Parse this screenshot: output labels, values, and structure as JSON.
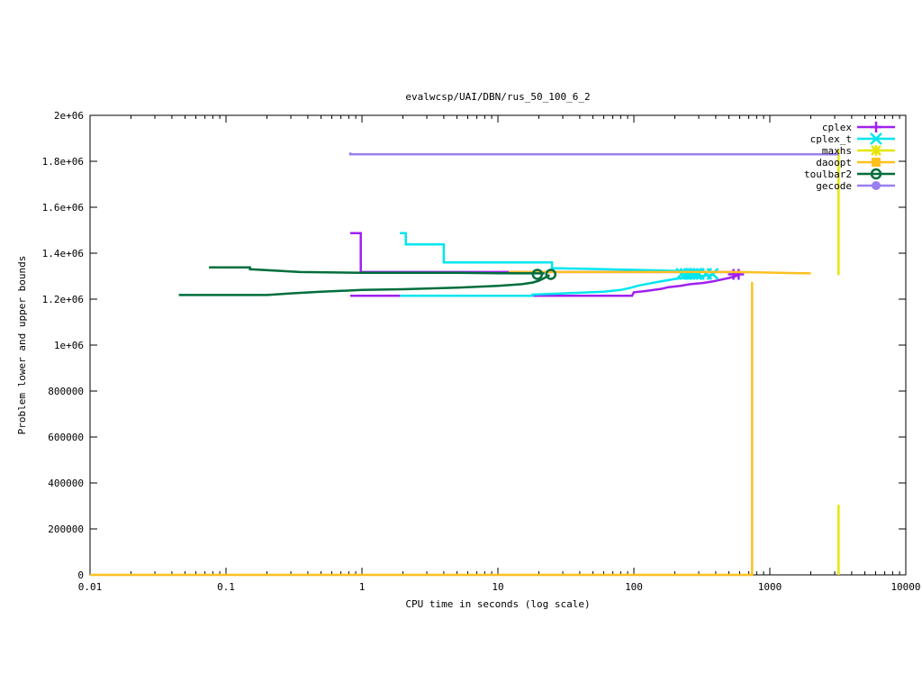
{
  "chart_data": {
    "type": "line",
    "title": "evalwcsp/UAI/DBN/rus_50_100_6_2",
    "xlabel": "CPU time in seconds (log scale)",
    "ylabel": "Problem lower and upper bounds",
    "xscale": "log",
    "xlim": [
      0.01,
      10000
    ],
    "ylim": [
      0,
      2000000
    ],
    "xticks": [
      {
        "value": 0.01,
        "label": "0.01"
      },
      {
        "value": 0.1,
        "label": "0.1"
      },
      {
        "value": 1,
        "label": "1"
      },
      {
        "value": 10,
        "label": "10"
      },
      {
        "value": 100,
        "label": "100"
      },
      {
        "value": 1000,
        "label": "1000"
      },
      {
        "value": 10000,
        "label": "10000"
      }
    ],
    "yticks": [
      {
        "value": 0,
        "label": "0"
      },
      {
        "value": 200000,
        "label": "200000"
      },
      {
        "value": 400000,
        "label": "400000"
      },
      {
        "value": 600000,
        "label": "600000"
      },
      {
        "value": 800000,
        "label": "800000"
      },
      {
        "value": 1000000,
        "label": "1e+06"
      },
      {
        "value": 1200000,
        "label": "1.2e+06"
      },
      {
        "value": 1400000,
        "label": "1.4e+06"
      },
      {
        "value": 1600000,
        "label": "1.6e+06"
      },
      {
        "value": 1800000,
        "label": "1.8e+06"
      },
      {
        "value": 2000000,
        "label": "2e+06"
      }
    ],
    "grid": false,
    "legend": "top-right",
    "series": [
      {
        "name": "cplex",
        "color": "#a020f0",
        "marker": "plus",
        "segments": [
          [
            [
              0.82,
              1487000
            ],
            [
              0.98,
              1487000
            ],
            [
              0.98,
              1318000
            ],
            [
              550,
              1318000
            ]
          ],
          [
            [
              0.82,
              1215000
            ],
            [
              1.9,
              1215000
            ],
            [
              4,
              1215000
            ],
            [
              10,
              1215000
            ],
            [
              20,
              1215000
            ],
            [
              50,
              1215000
            ],
            [
              97,
              1215000
            ],
            [
              100,
              1230000
            ],
            [
              120,
              1235000
            ],
            [
              140,
              1240000
            ],
            [
              160,
              1245000
            ],
            [
              180,
              1252000
            ],
            [
              220,
              1258000
            ],
            [
              260,
              1265000
            ],
            [
              320,
              1270000
            ],
            [
              380,
              1277000
            ],
            [
              440,
              1285000
            ],
            [
              500,
              1292000
            ],
            [
              560,
              1300000
            ],
            [
              600,
              1305000
            ]
          ]
        ],
        "markers": [
          [
            540,
            1308000
          ],
          [
            590,
            1308000
          ]
        ]
      },
      {
        "name": "cplex_t",
        "color": "#00e5ee",
        "marker": "x",
        "segments": [
          [
            [
              1.9,
              1487000
            ],
            [
              2.1,
              1487000
            ],
            [
              2.1,
              1438000
            ],
            [
              4.0,
              1438000
            ],
            [
              4.0,
              1360000
            ],
            [
              25,
              1360000
            ],
            [
              25,
              1335000
            ],
            [
              60,
              1330000
            ],
            [
              150,
              1325000
            ],
            [
              380,
              1318000
            ]
          ],
          [
            [
              1.9,
              1215000
            ],
            [
              18,
              1215000
            ],
            [
              18,
              1220000
            ],
            [
              30,
              1225000
            ],
            [
              60,
              1232000
            ],
            [
              80,
              1240000
            ],
            [
              95,
              1250000
            ],
            [
              110,
              1260000
            ],
            [
              130,
              1268000
            ],
            [
              160,
              1278000
            ],
            [
              200,
              1288000
            ],
            [
              260,
              1296000
            ],
            [
              330,
              1302000
            ],
            [
              380,
              1306000
            ]
          ]
        ],
        "markers": [
          [
            225,
            1310000
          ],
          [
            240,
            1310000
          ],
          [
            255,
            1310000
          ],
          [
            270,
            1310000
          ],
          [
            285,
            1310000
          ],
          [
            300,
            1310000
          ],
          [
            340,
            1310000
          ],
          [
            380,
            1310000
          ]
        ]
      },
      {
        "name": "maxhs",
        "color": "#e5e500",
        "marker": "star",
        "segments": [
          [
            [
              3200,
              1850000
            ],
            [
              3200,
              1305000
            ]
          ],
          [
            [
              3200,
              305000
            ],
            [
              3200,
              0
            ]
          ]
        ],
        "markers": []
      },
      {
        "name": "daoopt",
        "color": "#ffc020",
        "marker": "square",
        "segments": [
          [
            [
              0.01,
              0
            ],
            [
              740,
              0
            ],
            [
              740,
              1275000
            ]
          ],
          [
            [
              12,
              1318000
            ],
            [
              600,
              1318000
            ],
            [
              2000,
              1312000
            ]
          ]
        ],
        "markers": []
      },
      {
        "name": "toulbar2",
        "color": "#006e3c",
        "marker": "circle",
        "segments": [
          [
            [
              0.075,
              1338000
            ],
            [
              0.15,
              1338000
            ],
            [
              0.15,
              1330000
            ],
            [
              0.35,
              1318000
            ],
            [
              1,
              1315000
            ],
            [
              5,
              1315000
            ],
            [
              10,
              1313000
            ],
            [
              22,
              1312000
            ]
          ],
          [
            [
              0.045,
              1218000
            ],
            [
              0.2,
              1218000
            ],
            [
              0.3,
              1225000
            ],
            [
              0.5,
              1232000
            ],
            [
              1,
              1240000
            ],
            [
              2,
              1243000
            ],
            [
              5,
              1250000
            ],
            [
              10,
              1258000
            ],
            [
              15,
              1265000
            ],
            [
              18,
              1272000
            ],
            [
              20,
              1280000
            ],
            [
              22,
              1292000
            ],
            [
              24,
              1305000
            ]
          ]
        ],
        "markers": [
          [
            19.5,
            1308000
          ],
          [
            24.5,
            1308000
          ]
        ]
      },
      {
        "name": "gecode",
        "color": "#9a7ff0",
        "marker": "filled-circle",
        "segments": [
          [
            [
              0.82,
              1838000
            ],
            [
              0.82,
              1830000
            ],
            [
              3000,
              1830000
            ],
            [
              3200,
              1830000
            ]
          ]
        ],
        "markers": []
      }
    ]
  }
}
